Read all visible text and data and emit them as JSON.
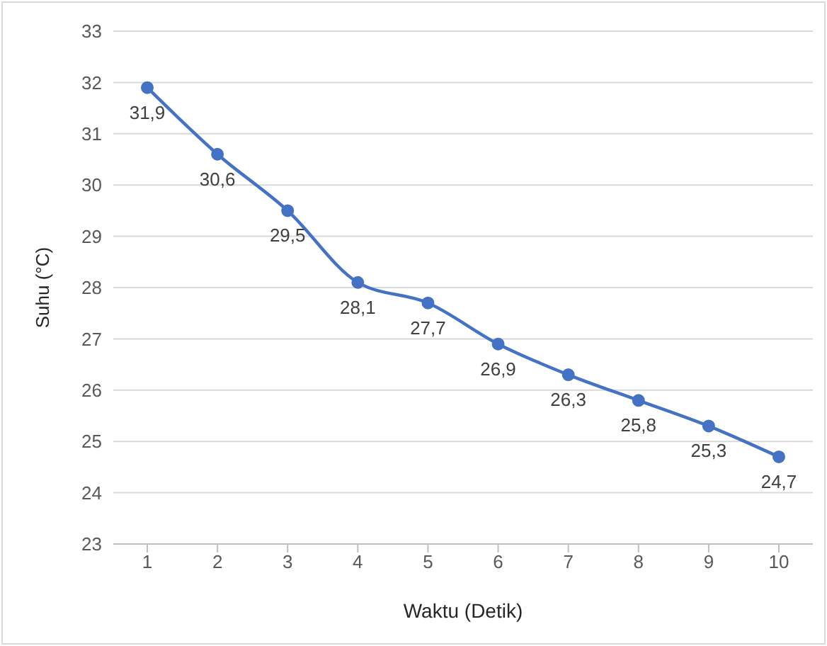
{
  "chart_data": {
    "type": "line",
    "xlabel": "Waktu (Detik)",
    "ylabel": "Suhu (°C)",
    "categories": [
      "1",
      "2",
      "3",
      "4",
      "5",
      "6",
      "7",
      "8",
      "9",
      "10"
    ],
    "series": [
      {
        "color": "#4472c4",
        "values": [
          31.9,
          30.6,
          29.5,
          28.1,
          27.7,
          26.9,
          26.3,
          25.8,
          25.3,
          24.7
        ],
        "value_labels": [
          "31,9",
          "30,6",
          "29,5",
          "28,1",
          "27,7",
          "26,9",
          "26,3",
          "25,8",
          "25,3",
          "24,7"
        ]
      }
    ],
    "ylim": [
      23,
      33
    ],
    "yticks": [
      23,
      24,
      25,
      26,
      27,
      28,
      29,
      30,
      31,
      32,
      33
    ],
    "grid": "y",
    "marker": "circle",
    "legend": false
  }
}
